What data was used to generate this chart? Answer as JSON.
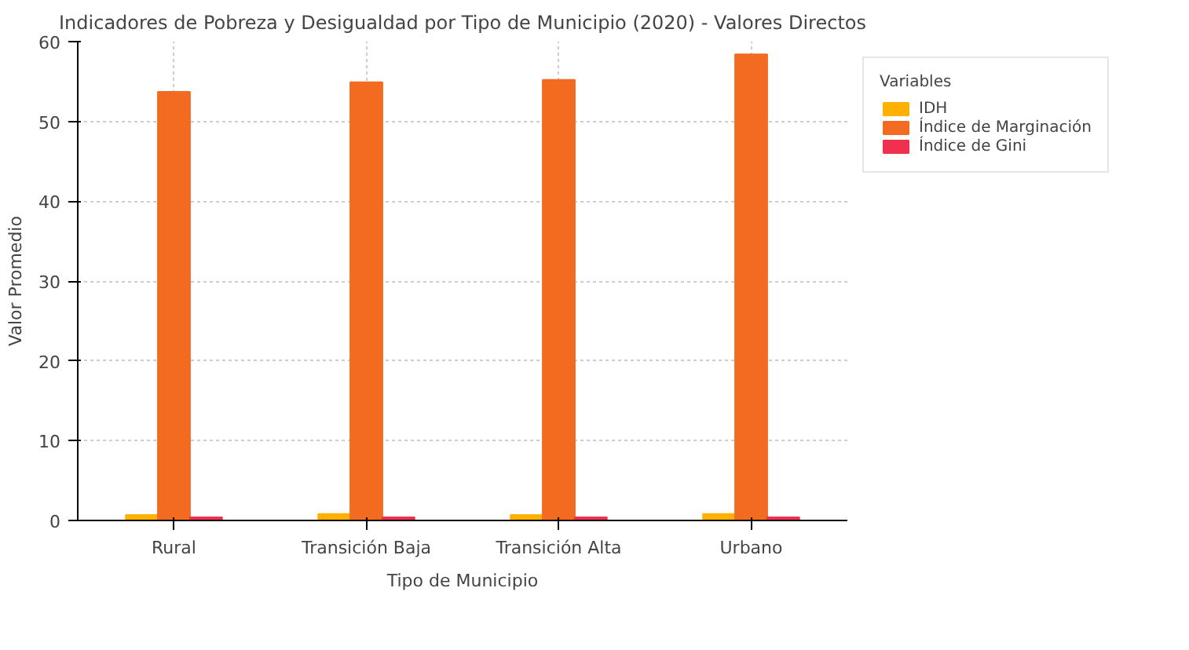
{
  "chart_data": {
    "type": "bar",
    "title": "Indicadores de Pobreza y Desigualdad por Tipo de Municipio (2020) - Valores Directos",
    "xlabel": "Tipo de Municipio",
    "ylabel": "Valor Promedio",
    "legend_title": "Variables",
    "categories": [
      "Rural",
      "Transición Baja",
      "Transición Alta",
      "Urbano"
    ],
    "series": [
      {
        "name": "IDH",
        "color": "#ffb000",
        "values": [
          0.7,
          0.8,
          0.7,
          0.8
        ]
      },
      {
        "name": "Índice de Marginación",
        "color": "#f26b21",
        "values": [
          53.7,
          54.9,
          55.2,
          58.4
        ]
      },
      {
        "name": "Índice de Gini",
        "color": "#f0304f",
        "values": [
          0.4,
          0.4,
          0.4,
          0.4
        ]
      }
    ],
    "ylim": [
      0,
      60
    ],
    "yticks": [
      0,
      10,
      20,
      30,
      40,
      50,
      60
    ],
    "grid": true,
    "legend": "top right"
  }
}
